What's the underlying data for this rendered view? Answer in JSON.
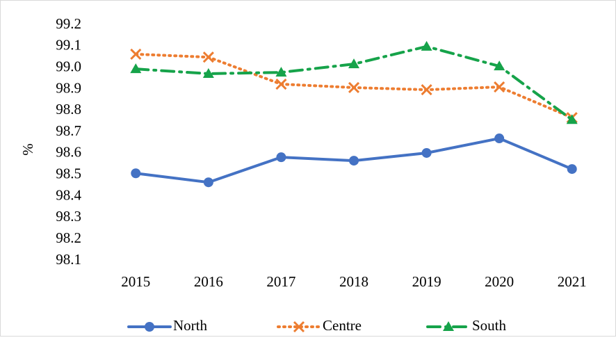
{
  "chart_data": {
    "type": "line",
    "y_label": "%",
    "categories": [
      "2015",
      "2016",
      "2017",
      "2018",
      "2019",
      "2020",
      "2021"
    ],
    "series": [
      {
        "name": "North",
        "color": "#4472c4",
        "line_style": "solid",
        "marker": "circle",
        "values": [
          98.508,
          98.466,
          98.583,
          98.567,
          98.603,
          98.671,
          98.528
        ]
      },
      {
        "name": "Centre",
        "color": "#ed7d31",
        "line_style": "dotted",
        "marker": "x",
        "values": [
          99.064,
          99.05,
          98.924,
          98.908,
          98.898,
          98.911,
          98.768
        ]
      },
      {
        "name": "South",
        "color": "#16a34a",
        "line_style": "dash-dot",
        "marker": "triangle",
        "values": [
          98.995,
          98.973,
          98.979,
          99.018,
          99.1,
          99.008,
          98.758
        ]
      }
    ],
    "ylim": [
      98.1,
      99.2
    ],
    "yticks": [
      98.1,
      98.2,
      98.3,
      98.4,
      98.5,
      98.6,
      98.7,
      98.8,
      98.9,
      {
        "value": 99.0,
        "label": "99.0"
      },
      99.1,
      99.2
    ],
    "grid": false,
    "legend": "bottom"
  }
}
